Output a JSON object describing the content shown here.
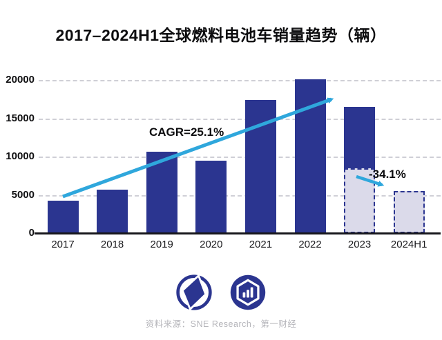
{
  "page": {
    "title": "2017–2024H1全球燃料电池车销量趋势（辆）"
  },
  "chart_data": {
    "type": "bar",
    "title": "2017–2024H1全球燃料电池车销量趋势（辆）",
    "xlabel": "",
    "ylabel": "",
    "unit": "辆",
    "ylim": [
      0,
      21000
    ],
    "yticks": [
      0,
      5000,
      10000,
      15000,
      20000
    ],
    "grid": "horizontal-dashed",
    "categories": [
      "2017",
      "2018",
      "2019",
      "2020",
      "2021",
      "2022",
      "2023",
      "2024H1"
    ],
    "values": [
      4200,
      5700,
      10600,
      9500,
      17400,
      20100,
      16500,
      5500
    ],
    "bars": [
      {
        "label": "2017",
        "segments": [
          {
            "value": 4200,
            "style": "solid"
          }
        ]
      },
      {
        "label": "2018",
        "segments": [
          {
            "value": 5700,
            "style": "solid"
          }
        ]
      },
      {
        "label": "2019",
        "segments": [
          {
            "value": 10600,
            "style": "solid"
          }
        ]
      },
      {
        "label": "2020",
        "segments": [
          {
            "value": 9500,
            "style": "solid"
          }
        ]
      },
      {
        "label": "2021",
        "segments": [
          {
            "value": 17400,
            "style": "solid"
          }
        ]
      },
      {
        "label": "2022",
        "segments": [
          {
            "value": 20100,
            "style": "solid"
          }
        ]
      },
      {
        "label": "2023",
        "segments": [
          {
            "value": 8500,
            "style": "dashed-light"
          },
          {
            "value": 8000,
            "style": "solid"
          }
        ]
      },
      {
        "label": "2024H1",
        "segments": [
          {
            "value": 5500,
            "style": "dashed-light"
          }
        ]
      }
    ],
    "annotations": {
      "cagr": "CAGR=25.1%",
      "decline": "-34.1%"
    }
  },
  "footer": {
    "source": "资料来源：SNE Research，第一财经"
  },
  "colors": {
    "bar_navy": "#2B3590",
    "bar_light_fill": "#DBDAEA",
    "trend_cyan": "#2FA7DC",
    "gridline": "#CFCFD6",
    "axis": "#17171C",
    "title_text": "#0D0D0F",
    "source_text": "#B5B5BA"
  }
}
